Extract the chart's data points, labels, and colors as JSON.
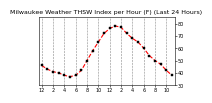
{
  "title": "Milwaukee Weather THSW Index per Hour (F) (Last 24 Hours)",
  "x_values": [
    0,
    1,
    2,
    3,
    4,
    5,
    6,
    7,
    8,
    9,
    10,
    11,
    12,
    13,
    14,
    15,
    16,
    17,
    18,
    19,
    20,
    21,
    22,
    23
  ],
  "y_values": [
    46,
    43,
    41,
    40,
    38,
    37,
    38,
    42,
    50,
    58,
    65,
    72,
    76,
    78,
    77,
    72,
    68,
    65,
    60,
    54,
    50,
    47,
    42,
    38
  ],
  "line_color": "#ff0000",
  "marker_color": "#000000",
  "bg_color": "#ffffff",
  "plot_bg_color": "#ffffff",
  "grid_color": "#888888",
  "ylim": [
    30,
    85
  ],
  "xlim": [
    -0.5,
    23.5
  ],
  "ytick_labels": [
    "80",
    "70",
    "60",
    "50",
    "40",
    "30"
  ],
  "ytick_values": [
    80,
    70,
    60,
    50,
    40,
    30
  ],
  "xtick_values": [
    0,
    2,
    4,
    6,
    8,
    10,
    12,
    14,
    16,
    18,
    20,
    22
  ],
  "xtick_labels": [
    "12",
    "2",
    "4",
    "6",
    "8",
    "10",
    "12",
    "2",
    "4",
    "6",
    "8",
    "10"
  ],
  "title_fontsize": 4.5,
  "tick_fontsize": 3.5,
  "line_width": 0.8,
  "marker_size": 1.5
}
